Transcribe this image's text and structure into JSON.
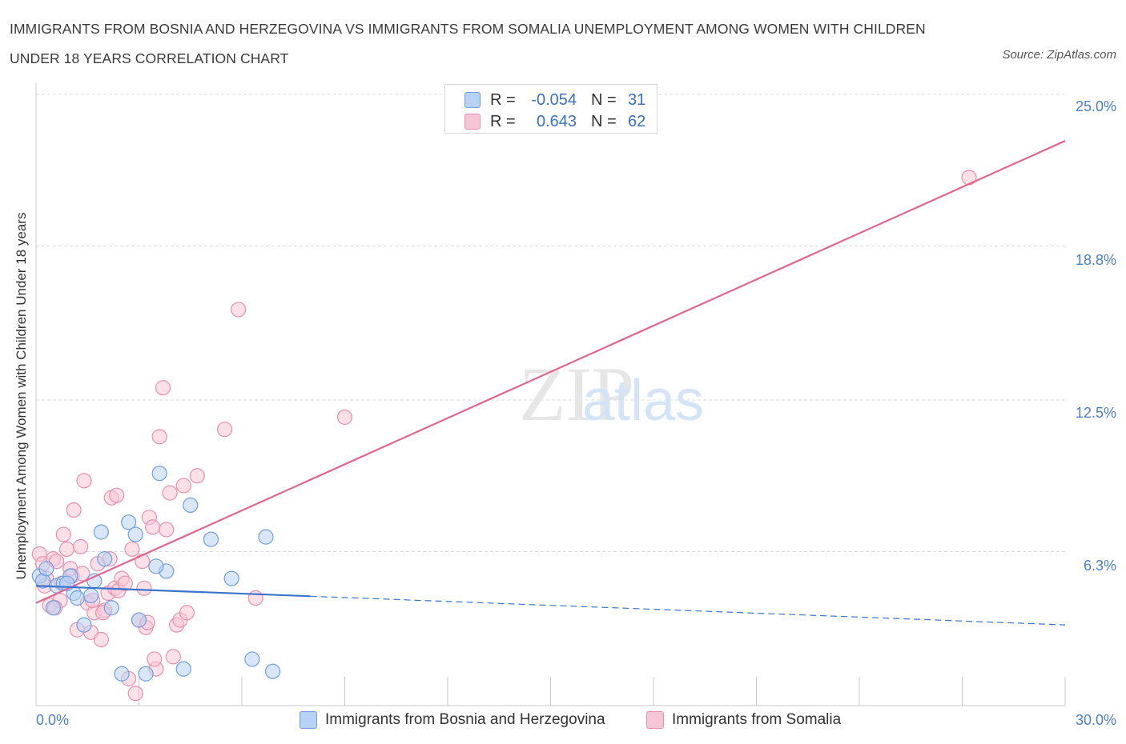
{
  "title": "IMMIGRANTS FROM BOSNIA AND HERZEGOVINA VS IMMIGRANTS FROM SOMALIA UNEMPLOYMENT AMONG WOMEN WITH CHILDREN UNDER 18 YEARS CORRELATION CHART",
  "source": "Source: ZipAtlas.com",
  "watermark": {
    "zip": "ZIP",
    "atlas": "atlas"
  },
  "legend": {
    "rows": [
      {
        "r_label": "R =",
        "r_value": "-0.054",
        "n_label": "N =",
        "n_value": "31"
      },
      {
        "r_label": "R =",
        "r_value": "0.643",
        "n_label": "N =",
        "n_value": "62"
      }
    ]
  },
  "colors": {
    "blue_fill": "#b8d2f3",
    "blue_stroke": "#6f9ee0",
    "blue_line": "#3a74cc",
    "pink_fill": "#f7c6d6",
    "pink_stroke": "#e98fae",
    "pink_line": "#e0668f",
    "grid": "#dcdcdc",
    "tick_label": "#4a7fc8"
  },
  "chart_data": {
    "type": "scatter",
    "title": "IMMIGRANTS FROM BOSNIA AND HERZEGOVINA VS IMMIGRANTS FROM SOMALIA UNEMPLOYMENT AMONG WOMEN WITH CHILDREN UNDER 18 YEARS CORRELATION CHART",
    "xlabel": "",
    "ylabel": "Unemployment Among Women with Children Under 18 years",
    "xlim": [
      0,
      30
    ],
    "ylim": [
      0,
      25
    ],
    "x_tick_labels": [
      "0.0%",
      "30.0%"
    ],
    "y_ticks": [
      6.3,
      12.5,
      18.8,
      25.0
    ],
    "y_tick_labels": [
      "6.3%",
      "12.5%",
      "18.8%",
      "25.0%"
    ],
    "grid": true,
    "legend_position": "top-center",
    "series": [
      {
        "name": "Immigrants from Bosnia and Herzegovina",
        "color": "#6f9ee0",
        "r": -0.054,
        "n": 31,
        "trend": {
          "x_start": 0.0,
          "y_start": 4.9,
          "x_solid_end": 8.0,
          "x_end": 30.0,
          "y_end": 3.3
        },
        "points": [
          [
            0.1,
            5.3
          ],
          [
            0.2,
            5.1
          ],
          [
            0.3,
            5.6
          ],
          [
            0.5,
            4.0
          ],
          [
            0.6,
            4.9
          ],
          [
            0.8,
            5.0
          ],
          [
            1.0,
            5.3
          ],
          [
            1.1,
            4.6
          ],
          [
            1.2,
            4.4
          ],
          [
            1.4,
            3.3
          ],
          [
            1.6,
            4.5
          ],
          [
            1.9,
            7.1
          ],
          [
            2.0,
            6.0
          ],
          [
            1.7,
            5.1
          ],
          [
            2.2,
            4.0
          ],
          [
            2.5,
            1.3
          ],
          [
            2.7,
            7.5
          ],
          [
            2.9,
            7.0
          ],
          [
            3.0,
            3.5
          ],
          [
            3.2,
            1.3
          ],
          [
            3.6,
            9.5
          ],
          [
            3.8,
            5.5
          ],
          [
            3.5,
            5.7
          ],
          [
            4.3,
            1.5
          ],
          [
            4.5,
            8.2
          ],
          [
            5.1,
            6.8
          ],
          [
            5.7,
            5.2
          ],
          [
            6.3,
            1.9
          ],
          [
            6.7,
            6.9
          ],
          [
            6.9,
            1.4
          ],
          [
            0.9,
            5.0
          ]
        ]
      },
      {
        "name": "Immigrants from Somalia",
        "color": "#e98fae",
        "r": 0.643,
        "n": 62,
        "trend": {
          "x_start": 0.0,
          "y_start": 4.2,
          "x_end": 30.0,
          "y_end": 23.1
        },
        "points": [
          [
            0.1,
            6.2
          ],
          [
            0.2,
            5.8
          ],
          [
            0.3,
            5.2
          ],
          [
            0.4,
            4.1
          ],
          [
            0.5,
            6.0
          ],
          [
            0.6,
            5.9
          ],
          [
            0.7,
            4.3
          ],
          [
            0.8,
            7.0
          ],
          [
            0.9,
            6.4
          ],
          [
            1.0,
            5.6
          ],
          [
            1.1,
            8.0
          ],
          [
            1.2,
            3.1
          ],
          [
            1.3,
            6.5
          ],
          [
            1.4,
            9.2
          ],
          [
            1.5,
            4.2
          ],
          [
            1.6,
            3.0
          ],
          [
            1.7,
            3.8
          ],
          [
            1.8,
            5.8
          ],
          [
            1.9,
            2.7
          ],
          [
            2.0,
            3.9
          ],
          [
            2.1,
            4.6
          ],
          [
            2.2,
            8.5
          ],
          [
            2.3,
            4.8
          ],
          [
            2.4,
            4.7
          ],
          [
            2.5,
            5.2
          ],
          [
            2.6,
            5.0
          ],
          [
            2.7,
            1.1
          ],
          [
            2.8,
            6.4
          ],
          [
            2.9,
            0.5
          ],
          [
            3.0,
            3.5
          ],
          [
            3.1,
            5.9
          ],
          [
            3.2,
            3.2
          ],
          [
            3.3,
            7.7
          ],
          [
            3.4,
            7.3
          ],
          [
            3.5,
            1.5
          ],
          [
            3.6,
            11.0
          ],
          [
            3.7,
            13.0
          ],
          [
            3.8,
            7.2
          ],
          [
            3.9,
            8.7
          ],
          [
            4.0,
            2.0
          ],
          [
            4.1,
            3.3
          ],
          [
            4.2,
            3.5
          ],
          [
            4.3,
            9.0
          ],
          [
            4.4,
            3.8
          ],
          [
            4.7,
            9.4
          ],
          [
            5.5,
            11.3
          ],
          [
            5.9,
            16.2
          ],
          [
            6.4,
            4.4
          ],
          [
            9.0,
            11.8
          ],
          [
            27.2,
            21.6
          ],
          [
            0.25,
            4.9
          ],
          [
            0.55,
            4.0
          ],
          [
            0.75,
            5.0
          ],
          [
            1.05,
            5.3
          ],
          [
            1.35,
            5.4
          ],
          [
            1.65,
            4.3
          ],
          [
            1.95,
            3.8
          ],
          [
            2.15,
            6.0
          ],
          [
            2.35,
            8.6
          ],
          [
            3.25,
            3.4
          ],
          [
            3.45,
            1.9
          ],
          [
            3.15,
            4.8
          ]
        ]
      }
    ]
  },
  "bottom_legend": {
    "items": [
      "Immigrants from Bosnia and Herzegovina",
      "Immigrants from Somalia"
    ]
  }
}
